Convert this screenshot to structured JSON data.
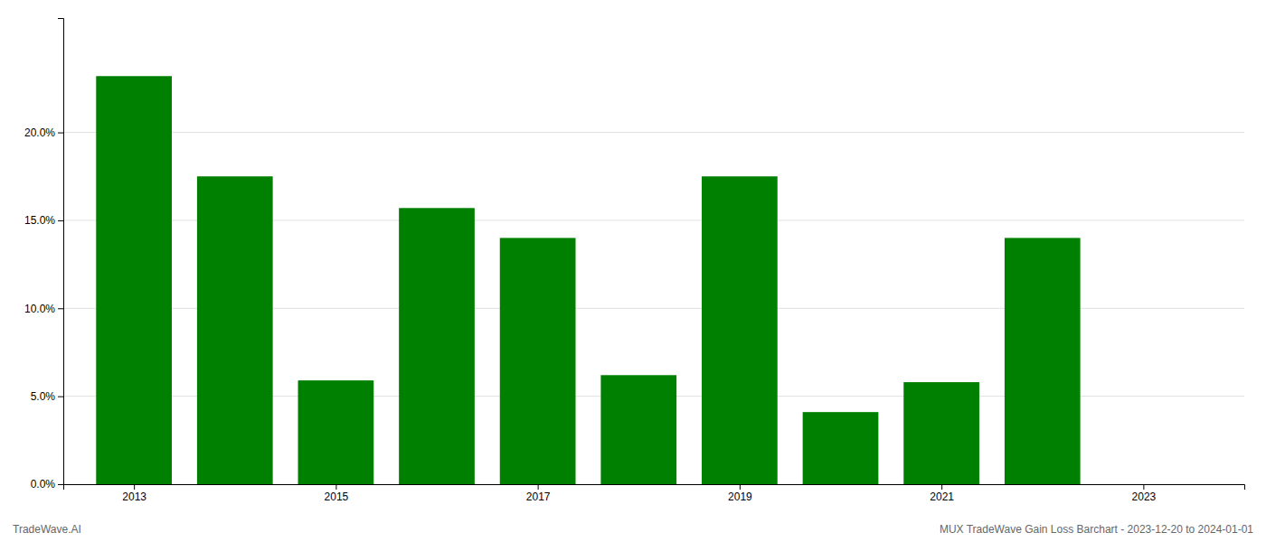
{
  "chart_data": {
    "type": "bar",
    "x": [
      2013,
      2014,
      2015,
      2016,
      2017,
      2018,
      2019,
      2020,
      2021,
      2022,
      2023
    ],
    "values": [
      0.232,
      0.175,
      0.059,
      0.157,
      0.14,
      0.062,
      0.175,
      0.041,
      0.058,
      0.14,
      null
    ],
    "color": "#008000",
    "xlim": [
      2012.3,
      2024.0
    ],
    "xticks": [
      2013,
      2015,
      2017,
      2019,
      2021,
      2023
    ],
    "ylim": [
      0,
      0.265
    ],
    "yticks": [
      {
        "value": 0.0,
        "label": "0.0%"
      },
      {
        "value": 0.05,
        "label": "5.0%"
      },
      {
        "value": 0.1,
        "label": "10.0%"
      },
      {
        "value": 0.15,
        "label": "15.0%"
      },
      {
        "value": 0.2,
        "label": "20.0%"
      }
    ],
    "grid": true,
    "annotations": [
      "TradeWave.AI",
      "MUX TradeWave Gain Loss Barchart - 2023-12-20 to 2024-01-01"
    ]
  }
}
